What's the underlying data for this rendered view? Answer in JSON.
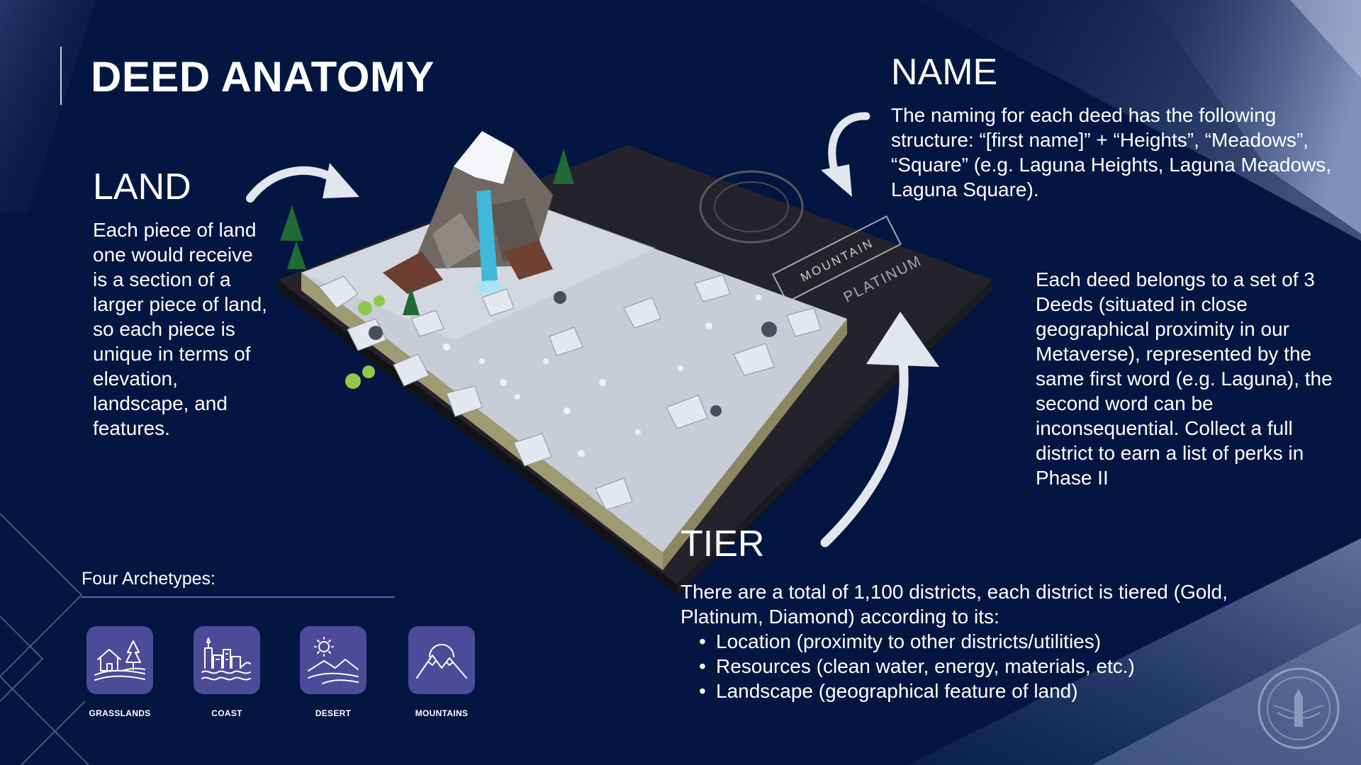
{
  "page": {
    "title": "DEED ANATOMY",
    "background_color": "#021641",
    "accent_color": "#4d4a98"
  },
  "land": {
    "heading": "LAND",
    "text": "Each piece of land one would receive is a section of a larger piece of land, so each piece is unique in terms of elevation, landscape, and features."
  },
  "name": {
    "heading": "NAME",
    "text": "The naming for each deed has the following structure: “[first name]” + “Heights”, “Meadows”, “Square” (e.g. Laguna Heights, Laguna Meadows, Laguna Square)."
  },
  "set": {
    "text": "Each deed belongs to a set of 3 Deeds (situated in close geographical proximity in our Metaverse), represented by the same first word (e.g. Laguna), the second word can be inconsequential. Collect a full district to earn a list of perks in Phase II"
  },
  "tier": {
    "heading": "TIER",
    "text": "There are a total of 1,100 districts, each district is tiered (Gold, Platinum, Diamond) according to its:",
    "items": [
      "Location (proximity to other districts/utilities)",
      "Resources (clean water, energy, materials, etc.)",
      "Landscape (geographical feature of land)"
    ]
  },
  "archetypes": {
    "label": "Four Archetypes:",
    "items": [
      {
        "name": "GRASSLANDS",
        "icon": "grasslands-icon"
      },
      {
        "name": "COAST",
        "icon": "coast-icon"
      },
      {
        "name": "DESERT",
        "icon": "desert-icon"
      },
      {
        "name": "MOUNTAINS",
        "icon": "mountains-icon"
      }
    ]
  },
  "deed_plaque": {
    "archetype_label": "MOUNTAIN",
    "tier_label": "PLATINUM"
  },
  "icons": [
    "arrow-land-icon",
    "arrow-name-icon",
    "arrow-tier-icon",
    "registry-seal-icon"
  ]
}
